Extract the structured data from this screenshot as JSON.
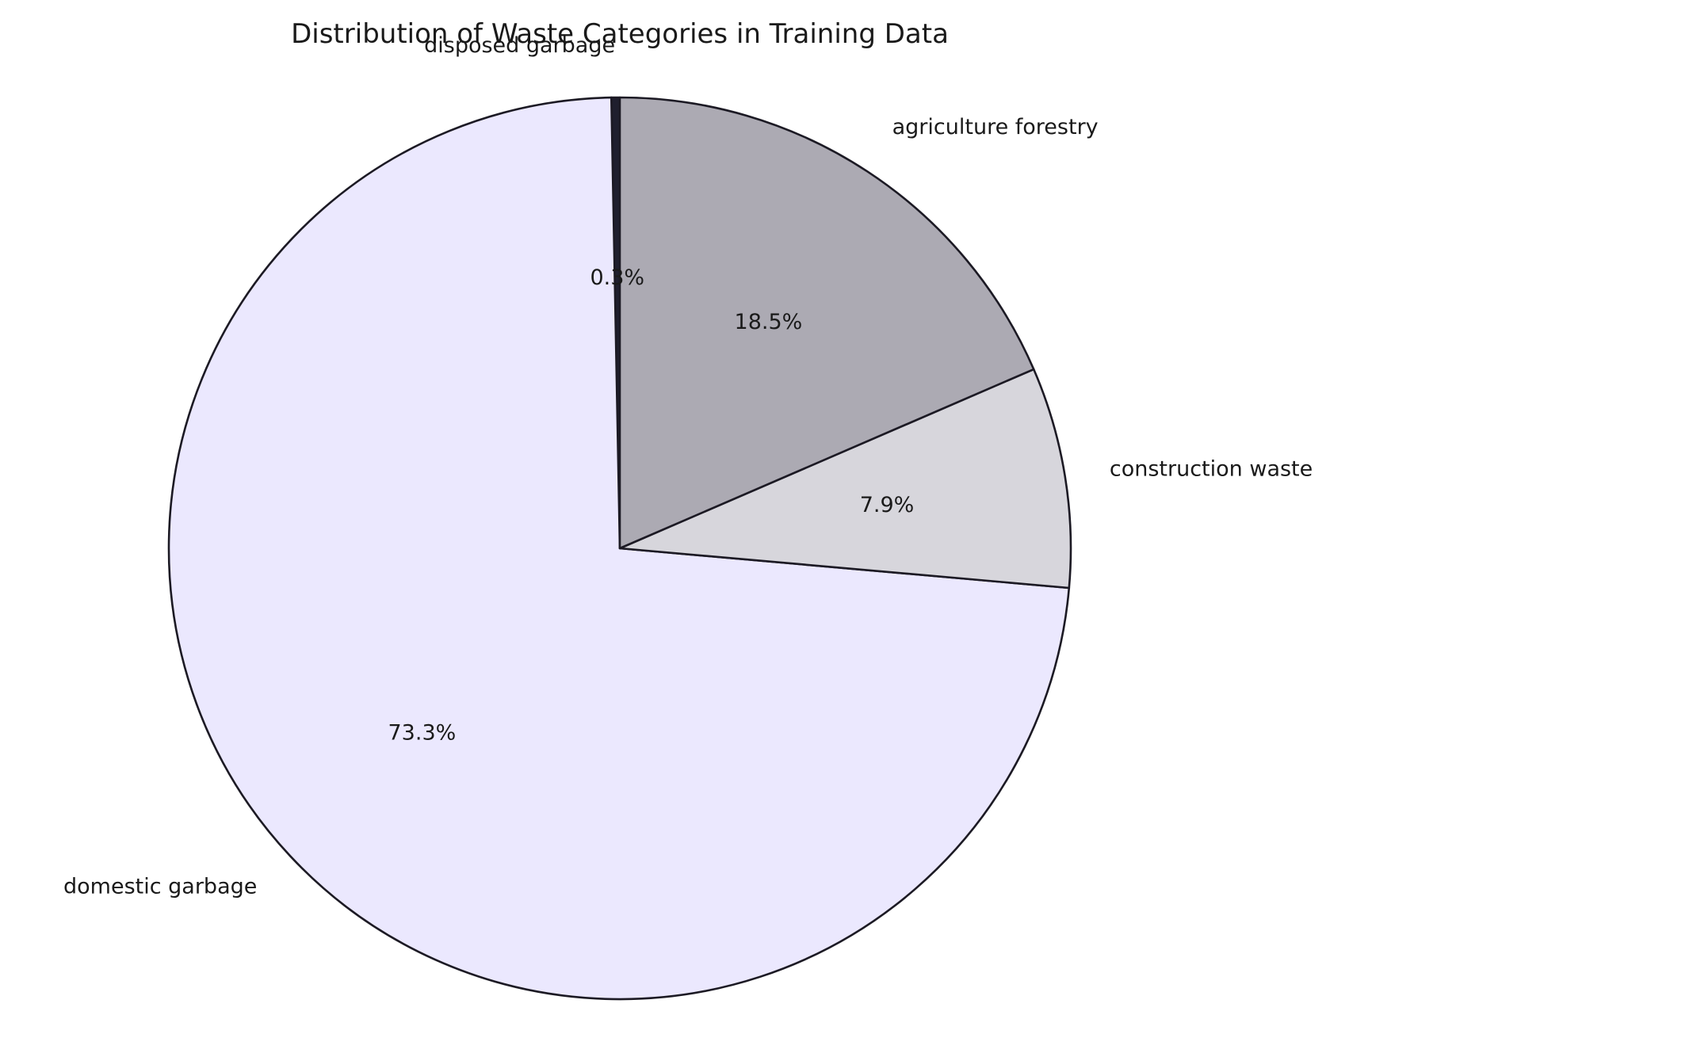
{
  "chart_data": {
    "type": "pie",
    "title": "Distribution of Waste Categories in Training Data",
    "start_angle_deg": 90,
    "direction": "counterclockwise",
    "slices": [
      {
        "label": "disposed garbage",
        "value": 0.3,
        "pct_label": "0.3%",
        "color": "#1f1f2e"
      },
      {
        "label": "domestic garbage",
        "value": 73.3,
        "pct_label": "73.3%",
        "color": "#ebe8fe"
      },
      {
        "label": "construction waste",
        "value": 7.9,
        "pct_label": "7.9%",
        "color": "#d7d6dc"
      },
      {
        "label": "agriculture forestry",
        "value": 18.5,
        "pct_label": "18.5%",
        "color": "#acaab3"
      }
    ]
  }
}
